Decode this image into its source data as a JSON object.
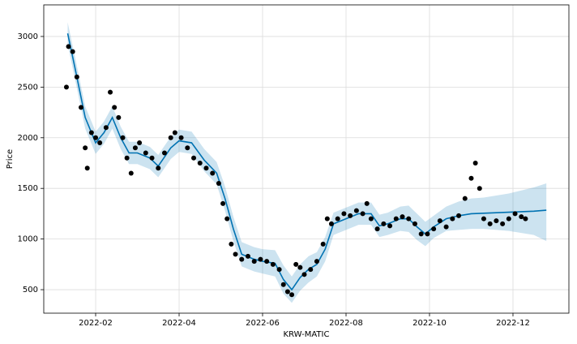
{
  "chart_data": {
    "type": "forecast",
    "xlabel": "KRW-MATIC",
    "ylabel": "Price",
    "grid": true,
    "xlim": [
      0.757,
      13.34
    ],
    "ylim": [
      268,
      3312
    ],
    "xticks": [
      {
        "value": 2,
        "label": "2022-02"
      },
      {
        "value": 4,
        "label": "2022-04"
      },
      {
        "value": 6,
        "label": "2022-06"
      },
      {
        "value": 8,
        "label": "2022-08"
      },
      {
        "value": 10,
        "label": "2022-10"
      },
      {
        "value": 12,
        "label": "2022-12"
      }
    ],
    "yticks": [
      500,
      1000,
      1500,
      2000,
      2500,
      3000
    ],
    "series": [
      {
        "kind": "scatter",
        "color": "#000000",
        "x": [
          1.3,
          1.35,
          1.45,
          1.55,
          1.65,
          1.75,
          1.8,
          1.9,
          2.0,
          2.1,
          2.25,
          2.35,
          2.45,
          2.55,
          2.65,
          2.75,
          2.85,
          2.95,
          3.05,
          3.2,
          3.35,
          3.5,
          3.65,
          3.8,
          3.9,
          4.05,
          4.2,
          4.35,
          4.5,
          4.65,
          4.8,
          4.95,
          5.05,
          5.15,
          5.25,
          5.35,
          5.5,
          5.65,
          5.8,
          5.95,
          6.1,
          6.25,
          6.4,
          6.5,
          6.6,
          6.7,
          6.8,
          6.9,
          7.0,
          7.15,
          7.3,
          7.45,
          7.55,
          7.65,
          7.8,
          7.95,
          8.1,
          8.25,
          8.4,
          8.5,
          8.6,
          8.75,
          8.9,
          9.05,
          9.2,
          9.35,
          9.5,
          9.65,
          9.8,
          9.95,
          10.1,
          10.25,
          10.4,
          10.55,
          10.7,
          10.85,
          11.0,
          11.1,
          11.2,
          11.3,
          11.45,
          11.6,
          11.75,
          11.9,
          12.05,
          12.2,
          12.3
        ],
        "values": [
          2500,
          2900,
          2850,
          2600,
          2300,
          1900,
          1700,
          2050,
          2000,
          1950,
          2100,
          2450,
          2300,
          2200,
          2000,
          1800,
          1650,
          1900,
          1950,
          1850,
          1800,
          1700,
          1850,
          2000,
          2050,
          2000,
          1900,
          1800,
          1750,
          1700,
          1650,
          1550,
          1350,
          1200,
          950,
          850,
          800,
          830,
          780,
          800,
          780,
          750,
          700,
          550,
          480,
          450,
          750,
          720,
          650,
          700,
          780,
          950,
          1200,
          1150,
          1200,
          1250,
          1230,
          1280,
          1250,
          1350,
          1200,
          1100,
          1150,
          1130,
          1200,
          1220,
          1200,
          1150,
          1050,
          1050,
          1100,
          1180,
          1120,
          1200,
          1230,
          1400,
          1600,
          1750,
          1500,
          1200,
          1150,
          1180,
          1150,
          1200,
          1250,
          1220,
          1200
        ]
      },
      {
        "kind": "line",
        "color": "#0072B2",
        "band_color": "#0072B2",
        "x": [
          1.33,
          1.5,
          1.75,
          1.9,
          2.0,
          2.2,
          2.4,
          2.6,
          2.8,
          3.0,
          3.3,
          3.5,
          3.8,
          4.0,
          4.3,
          4.6,
          4.9,
          5.1,
          5.3,
          5.5,
          5.8,
          6.0,
          6.3,
          6.5,
          6.7,
          6.9,
          7.1,
          7.3,
          7.5,
          7.7,
          8.0,
          8.3,
          8.6,
          8.8,
          9.0,
          9.3,
          9.5,
          9.7,
          9.9,
          10.1,
          10.4,
          10.7,
          11.0,
          11.3,
          11.6,
          11.9,
          12.2,
          12.5,
          12.8
        ],
        "values": [
          3030,
          2700,
          2200,
          2050,
          1950,
          2050,
          2200,
          2000,
          1850,
          1850,
          1800,
          1720,
          1900,
          1970,
          1950,
          1780,
          1650,
          1400,
          1100,
          850,
          800,
          780,
          760,
          600,
          500,
          620,
          700,
          750,
          900,
          1150,
          1200,
          1250,
          1250,
          1130,
          1150,
          1200,
          1200,
          1120,
          1050,
          1120,
          1200,
          1230,
          1250,
          1255,
          1260,
          1265,
          1270,
          1275,
          1285
        ],
        "lower": [
          2920,
          2590,
          2090,
          1940,
          1840,
          1940,
          2090,
          1890,
          1740,
          1740,
          1690,
          1610,
          1790,
          1860,
          1840,
          1670,
          1540,
          1280,
          980,
          730,
          680,
          660,
          630,
          460,
          370,
          490,
          570,
          630,
          780,
          1040,
          1090,
          1140,
          1140,
          1020,
          1040,
          1080,
          1070,
          990,
          930,
          1010,
          1080,
          1090,
          1100,
          1100,
          1090,
          1080,
          1060,
          1040,
          980
        ],
        "upper": [
          3140,
          2810,
          2310,
          2160,
          2060,
          2160,
          2310,
          2110,
          1960,
          1960,
          1910,
          1830,
          2010,
          2080,
          2060,
          1890,
          1760,
          1520,
          1220,
          970,
          920,
          900,
          890,
          740,
          630,
          750,
          830,
          870,
          1020,
          1260,
          1310,
          1360,
          1360,
          1240,
          1260,
          1320,
          1330,
          1250,
          1170,
          1230,
          1320,
          1370,
          1400,
          1410,
          1430,
          1450,
          1480,
          1510,
          1550
        ]
      }
    ]
  }
}
